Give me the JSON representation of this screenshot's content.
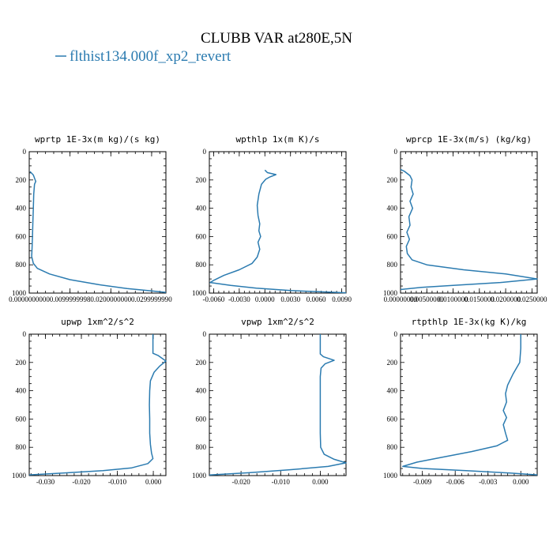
{
  "chart_title": "CLUBB VAR at280E,5N",
  "legend": {
    "label": "flthist134.000f_xp2_revert",
    "color": "#2b7bb0"
  },
  "chart_data": [
    {
      "type": "line",
      "title": "wprtp  1E-3x(m kg)/(s kg)",
      "xlim": [
        0.0,
        0.0335
      ],
      "ylim": [
        1000,
        0
      ],
      "xticks": [
        "0.0000000000",
        "0.0099999998",
        "0.0200000000",
        "0.0299999990"
      ],
      "xtick_values": [
        0.0,
        0.01,
        0.02,
        0.03
      ],
      "yticks": [
        0,
        200,
        400,
        600,
        800,
        1000
      ],
      "series": [
        {
          "points": [
            [
              0.0002,
              140
            ],
            [
              0.001,
              165
            ],
            [
              0.0014,
              195
            ],
            [
              0.0016,
              210
            ],
            [
              0.0013,
              230
            ],
            [
              0.0011,
              300
            ],
            [
              0.001,
              400
            ],
            [
              0.0009,
              500
            ],
            [
              0.0008,
              600
            ],
            [
              0.0007,
              680
            ],
            [
              0.0006,
              740
            ],
            [
              0.001,
              790
            ],
            [
              0.002,
              825
            ],
            [
              0.005,
              865
            ],
            [
              0.01,
              905
            ],
            [
              0.017,
              940
            ],
            [
              0.024,
              968
            ],
            [
              0.03,
              985
            ],
            [
              0.0335,
              995
            ]
          ]
        }
      ]
    },
    {
      "type": "line",
      "title": "wpthlp  1x(m K)/s",
      "xlim": [
        -0.0065,
        0.0095
      ],
      "ylim": [
        1000,
        0
      ],
      "xticks": [
        "-0.0060",
        "-0.0030",
        "0.0000",
        "0.0030",
        "0.0060",
        "0.0090"
      ],
      "xtick_values": [
        -0.006,
        -0.003,
        0.0,
        0.003,
        0.006,
        0.009
      ],
      "yticks": [
        0,
        200,
        400,
        600,
        800,
        1000
      ],
      "series": [
        {
          "points": [
            [
              0.0,
              130
            ],
            [
              0.0003,
              148
            ],
            [
              0.0013,
              162
            ],
            [
              0.0006,
              178
            ],
            [
              0.0001,
              195
            ],
            [
              -0.0004,
              230
            ],
            [
              -0.0007,
              300
            ],
            [
              -0.0009,
              380
            ],
            [
              -0.0008,
              450
            ],
            [
              -0.0006,
              510
            ],
            [
              -0.0007,
              560
            ],
            [
              -0.0005,
              600
            ],
            [
              -0.0008,
              640
            ],
            [
              -0.0006,
              690
            ],
            [
              -0.0009,
              745
            ],
            [
              -0.0015,
              790
            ],
            [
              -0.003,
              835
            ],
            [
              -0.0048,
              875
            ],
            [
              -0.006,
              910
            ],
            [
              -0.0064,
              925
            ],
            [
              -0.004,
              945
            ],
            [
              -0.001,
              965
            ],
            [
              0.003,
              982
            ],
            [
              0.0075,
              993
            ],
            [
              0.0095,
              998
            ]
          ]
        }
      ]
    },
    {
      "type": "line",
      "title": "wprcp  1E-3x(m/s) (kg/kg)",
      "xlim": [
        0.0,
        0.026
      ],
      "ylim": [
        1000,
        0
      ],
      "xticks": [
        "0.00000000",
        "0.00500000",
        "0.0100000",
        "0.0150000",
        "0.0200000",
        "0.0250000"
      ],
      "xtick_values": [
        0.0,
        0.005,
        0.01,
        0.015,
        0.02,
        0.025
      ],
      "yticks": [
        0,
        200,
        400,
        600,
        800,
        1000
      ],
      "series": [
        {
          "points": [
            [
              0.0,
              125
            ],
            [
              0.0008,
              140
            ],
            [
              0.0018,
              170
            ],
            [
              0.0022,
              200
            ],
            [
              0.002,
              250
            ],
            [
              0.0024,
              300
            ],
            [
              0.0018,
              350
            ],
            [
              0.0023,
              400
            ],
            [
              0.0016,
              460
            ],
            [
              0.0018,
              520
            ],
            [
              0.0012,
              570
            ],
            [
              0.0017,
              620
            ],
            [
              0.0011,
              670
            ],
            [
              0.0013,
              720
            ],
            [
              0.0022,
              765
            ],
            [
              0.005,
              800
            ],
            [
              0.012,
              835
            ],
            [
              0.02,
              865
            ],
            [
              0.026,
              900
            ],
            [
              0.019,
              925
            ],
            [
              0.01,
              945
            ],
            [
              0.004,
              960
            ],
            [
              0.0,
              975
            ]
          ]
        }
      ]
    },
    {
      "type": "line",
      "title": "upwp  1xm^2/s^2",
      "xlim": [
        -0.0345,
        0.0035
      ],
      "ylim": [
        1000,
        0
      ],
      "xticks": [
        "-0.030",
        "-0.020",
        "-0.010",
        "0.000"
      ],
      "xtick_values": [
        -0.03,
        -0.02,
        -0.01,
        0.0
      ],
      "yticks": [
        0,
        200,
        400,
        600,
        800,
        1000
      ],
      "series": [
        {
          "points": [
            [
              -0.0001,
              0
            ],
            [
              -0.0001,
              135
            ],
            [
              0.0013,
              150
            ],
            [
              0.0035,
              190
            ],
            [
              0.0018,
              225
            ],
            [
              0.0002,
              270
            ],
            [
              -0.0008,
              330
            ],
            [
              -0.001,
              400
            ],
            [
              -0.0011,
              500
            ],
            [
              -0.001,
              600
            ],
            [
              -0.001,
              700
            ],
            [
              -0.0008,
              780
            ],
            [
              -0.0005,
              840
            ],
            [
              -0.0001,
              880
            ],
            [
              -0.0015,
              915
            ],
            [
              -0.006,
              945
            ],
            [
              -0.014,
              965
            ],
            [
              -0.025,
              982
            ],
            [
              -0.0345,
              995
            ]
          ]
        }
      ]
    },
    {
      "type": "line",
      "title": "vpwp  1xm^2/s^2",
      "xlim": [
        -0.028,
        0.0065
      ],
      "ylim": [
        1000,
        0
      ],
      "xticks": [
        "-0.020",
        "-0.010",
        "0.000"
      ],
      "xtick_values": [
        -0.02,
        -0.01,
        0.0
      ],
      "yticks": [
        0,
        200,
        400,
        600,
        800,
        1000
      ],
      "series": [
        {
          "points": [
            [
              0.0,
              0
            ],
            [
              0.0,
              140
            ],
            [
              0.0008,
              160
            ],
            [
              0.0035,
              185
            ],
            [
              0.0012,
              210
            ],
            [
              0.0002,
              240
            ],
            [
              0.0,
              300
            ],
            [
              0.0,
              400
            ],
            [
              0.0,
              500
            ],
            [
              0.0,
              600
            ],
            [
              0.0,
              700
            ],
            [
              0.0001,
              800
            ],
            [
              0.001,
              850
            ],
            [
              0.0035,
              885
            ],
            [
              0.0065,
              910
            ],
            [
              0.002,
              935
            ],
            [
              -0.008,
              960
            ],
            [
              -0.018,
              980
            ],
            [
              -0.028,
              996
            ]
          ]
        }
      ]
    },
    {
      "type": "line",
      "title": "rtpthlp  1E-3x(kg K)/kg",
      "xlim": [
        -0.011,
        0.0015
      ],
      "ylim": [
        1000,
        0
      ],
      "xticks": [
        "-0.009",
        "-0.006",
        "-0.003",
        "0.000"
      ],
      "xtick_values": [
        -0.009,
        -0.006,
        -0.003,
        0.0
      ],
      "yticks": [
        0,
        200,
        400,
        600,
        800,
        1000
      ],
      "series": [
        {
          "points": [
            [
              0.0,
              0
            ],
            [
              0.0,
              100
            ],
            [
              -0.0001,
              200
            ],
            [
              -0.0007,
              280
            ],
            [
              -0.0012,
              360
            ],
            [
              -0.0014,
              420
            ],
            [
              -0.0013,
              480
            ],
            [
              -0.0016,
              540
            ],
            [
              -0.0013,
              590
            ],
            [
              -0.0016,
              640
            ],
            [
              -0.0014,
              700
            ],
            [
              -0.0012,
              750
            ],
            [
              -0.0022,
              790
            ],
            [
              -0.0045,
              830
            ],
            [
              -0.0075,
              875
            ],
            [
              -0.0095,
              905
            ],
            [
              -0.0108,
              935
            ],
            [
              -0.009,
              950
            ],
            [
              -0.005,
              965
            ],
            [
              -0.001,
              982
            ],
            [
              0.0015,
              995
            ]
          ]
        }
      ]
    }
  ]
}
